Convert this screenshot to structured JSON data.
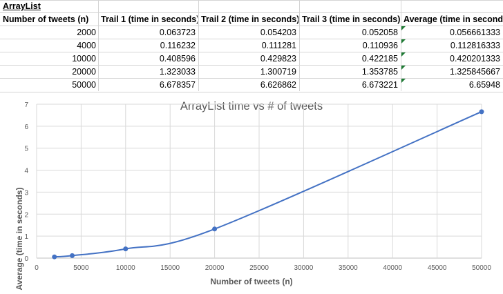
{
  "sheet": {
    "title": "ArrayList",
    "headers": [
      "Number of tweets (n)",
      "Trail 1 (time in seconds)",
      "Trail 2 (time in seconds)",
      "Trail 3 (time in seconds)",
      "Average (time in seconds"
    ],
    "rows": [
      [
        "2000",
        "0.063723",
        "0.054203",
        "0.052058",
        "0.056661333"
      ],
      [
        "4000",
        "0.116232",
        "0.111281",
        "0.110936",
        "0.112816333"
      ],
      [
        "10000",
        "0.408596",
        "0.429823",
        "0.422185",
        "0.420201333"
      ],
      [
        "20000",
        "1.323033",
        "1.300719",
        "1.353785",
        "1.325845667"
      ],
      [
        "50000",
        "6.678357",
        "6.626862",
        "6.673221",
        "6.65948"
      ]
    ],
    "error_indicator_color": "#1e7b34"
  },
  "chart_data": {
    "type": "scatter",
    "title": "ArrayList time vs # of tweets",
    "xlabel": "Number of tweets (n)",
    "ylabel": "Average (time in seconds)",
    "x": [
      2000,
      4000,
      10000,
      20000,
      50000
    ],
    "y": [
      0.056661333,
      0.112816333,
      0.420201333,
      1.325845667,
      6.65948
    ],
    "xlim": [
      0,
      50000
    ],
    "ylim": [
      0,
      7
    ],
    "xticks": [
      0,
      5000,
      10000,
      15000,
      20000,
      25000,
      30000,
      35000,
      40000,
      45000,
      50000
    ],
    "yticks": [
      0,
      1,
      2,
      3,
      4,
      5,
      6,
      7
    ],
    "smoothed_line": true,
    "grid": true,
    "series_color": "#4472c4"
  }
}
